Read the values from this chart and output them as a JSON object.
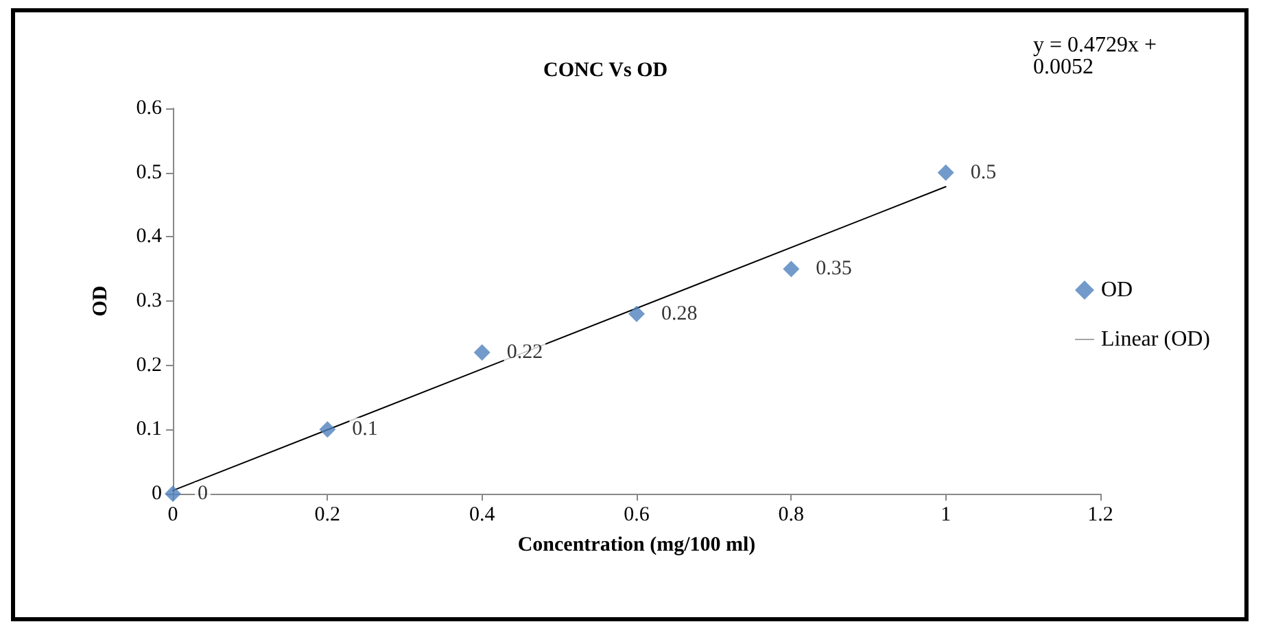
{
  "chart_data": {
    "type": "scatter",
    "title": "CONC Vs OD",
    "xlabel": "Concentration (mg/100 ml)",
    "ylabel": "OD",
    "annotations": [
      "y = 0.4729x + 0.0052"
    ],
    "x": [
      0,
      0.2,
      0.4,
      0.6,
      0.8,
      1
    ],
    "series": [
      {
        "name": "OD",
        "color": "#4f81bd",
        "marker": "diamond",
        "data_labels": true,
        "values": [
          0,
          0.1,
          0.22,
          0.28,
          0.35,
          0.5
        ]
      },
      {
        "name": "Linear (OD)",
        "type": "line",
        "color": "#000000",
        "marker": "none",
        "line_style": "solid",
        "x": [
          0,
          1
        ],
        "values": [
          0.005,
          0.478
        ]
      }
    ],
    "xlim": [
      0,
      1.2
    ],
    "xticks": [
      0,
      0.2,
      0.4,
      0.6,
      0.8,
      1,
      1.2
    ],
    "ylim": [
      0,
      0.6
    ],
    "yticks": [
      0,
      0.1,
      0.2,
      0.3,
      0.4,
      0.5,
      0.6
    ],
    "grid": false,
    "legend": "right"
  }
}
